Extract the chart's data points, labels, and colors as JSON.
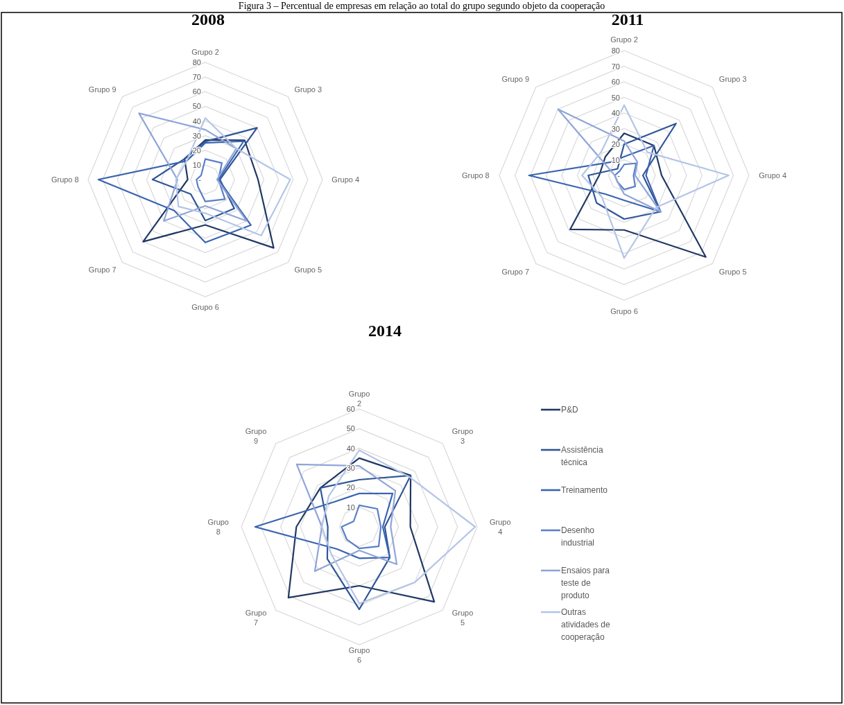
{
  "chart_data": [
    {
      "type": "radar",
      "title": "2008",
      "annotations": [
        "Figura 3 – Percentual de empresas em relação ao total do grupo segundo objeto da cooperação"
      ],
      "categories": [
        "Grupo 2",
        "Grupo 3",
        "Grupo 4",
        "Grupo 5",
        "Grupo 6",
        "Grupo 7",
        "Grupo 8",
        "Grupo 9"
      ],
      "ylim": [
        0,
        80
      ],
      "yticks": [
        {
          "value": 0,
          "label": "-"
        },
        10,
        20,
        30,
        40,
        50,
        60,
        70,
        80
      ],
      "grid": true,
      "legend": false,
      "series": [
        {
          "color": "#203864",
          "values": [
            27,
            38,
            36,
            66,
            31,
            60,
            12,
            20
          ]
        },
        {
          "color": "#2f5597",
          "values": [
            26,
            50,
            10,
            28,
            28,
            14,
            36,
            20
          ]
        },
        {
          "color": "#3a64b0",
          "values": [
            25,
            37,
            9,
            44,
            43,
            30,
            73,
            18
          ]
        },
        {
          "color": "#5a7fc8",
          "values": [
            14,
            16,
            9,
            19,
            15,
            7,
            6,
            4
          ]
        },
        {
          "color": "#8fa5d8",
          "values": [
            34,
            30,
            8,
            40,
            18,
            40,
            19,
            64
          ]
        },
        {
          "color": "#b4c5e7",
          "values": [
            42,
            30,
            58,
            54,
            23,
            26,
            20,
            18
          ]
        }
      ]
    },
    {
      "type": "radar",
      "title": "2011",
      "categories": [
        "Grupo 2",
        "Grupo 3",
        "Grupo 4",
        "Grupo 5",
        "Grupo 6",
        "Grupo 7",
        "Grupo 8",
        "Grupo 9"
      ],
      "ylim": [
        0,
        80
      ],
      "yticks": [
        {
          "value": 0,
          "label": "-"
        },
        10,
        20,
        30,
        40,
        50,
        60,
        70,
        80
      ],
      "grid": true,
      "legend": false,
      "series": [
        {
          "color": "#203864",
          "values": [
            27,
            27,
            24,
            74,
            35,
            49,
            16,
            17
          ]
        },
        {
          "color": "#2f5597",
          "values": [
            20,
            47,
            12,
            33,
            28,
            25,
            23,
            6
          ]
        },
        {
          "color": "#3a64b0",
          "values": [
            12,
            27,
            14,
            33,
            16,
            17,
            61,
            12
          ]
        },
        {
          "color": "#5a7fc8",
          "values": [
            7,
            11,
            6,
            10,
            9,
            6,
            6,
            4
          ]
        },
        {
          "color": "#8fa5d8",
          "values": [
            22,
            12,
            7,
            33,
            12,
            6,
            6,
            60
          ]
        },
        {
          "color": "#b4c5e7",
          "values": [
            45,
            21,
            67,
            29,
            53,
            20,
            27,
            21
          ]
        }
      ]
    },
    {
      "type": "radar",
      "title": "2014",
      "categories": [
        "Grupo 2",
        "Grupo 3",
        "Grupo 4",
        "Grupo 5",
        "Grupo 6",
        "Grupo 7",
        "Grupo 8",
        "Grupo 9"
      ],
      "ylim": [
        0,
        60
      ],
      "yticks": [
        10,
        20,
        30,
        40,
        50,
        60
      ],
      "grid": true,
      "legend": "right",
      "series": [
        {
          "name": "P&D",
          "color": "#203864",
          "values": [
            35,
            37,
            26,
            54,
            30,
            51,
            32,
            28
          ]
        },
        {
          "name": "Assistência técnica",
          "color": "#2f5597",
          "values": [
            24,
            37,
            13,
            22,
            42,
            23,
            16,
            28
          ]
        },
        {
          "name": "Treinamento",
          "color": "#3a64b0",
          "values": [
            17,
            24,
            12,
            22,
            16,
            16,
            53,
            18
          ]
        },
        {
          "name": "Desenho industrial",
          "color": "#5a7fc8",
          "values": [
            11,
            13,
            11,
            14,
            11,
            9,
            9,
            4
          ]
        },
        {
          "name": "Ensaios para teste de produto",
          "color": "#8fa5d8",
          "values": [
            31,
            26,
            16,
            27,
            12,
            32,
            19,
            45
          ]
        },
        {
          "name": "Outras atividades de cooperação",
          "color": "#b4c5e7",
          "values": [
            39,
            36,
            59,
            40,
            39,
            20,
            19,
            22
          ]
        }
      ]
    }
  ]
}
